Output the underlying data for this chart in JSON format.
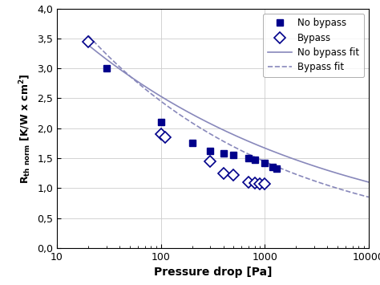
{
  "no_bypass_x": [
    30,
    100,
    200,
    300,
    400,
    500,
    700,
    800,
    1000,
    1200,
    1300
  ],
  "no_bypass_y": [
    3.0,
    2.1,
    1.75,
    1.62,
    1.58,
    1.55,
    1.5,
    1.48,
    1.42,
    1.35,
    1.33
  ],
  "bypass_x": [
    20,
    100,
    110,
    300,
    400,
    500,
    700,
    800,
    900,
    1000
  ],
  "bypass_y": [
    3.45,
    1.9,
    1.85,
    1.45,
    1.25,
    1.22,
    1.1,
    1.08,
    1.07,
    1.07
  ],
  "no_bypass_fit_anchor1_x": 30,
  "no_bypass_fit_anchor1_y": 3.15,
  "no_bypass_fit_anchor2_x": 10000,
  "no_bypass_fit_anchor2_y": 1.1,
  "bypass_fit_anchor1_x": 20,
  "bypass_fit_anchor1_y": 3.55,
  "bypass_fit_anchor2_x": 10000,
  "bypass_fit_anchor2_y": 0.85,
  "color_dark_blue": "#00008B",
  "color_fit": "#8888bb",
  "xlim": [
    10,
    10000
  ],
  "ylim": [
    0.0,
    4.0
  ],
  "xlabel": "Pressure drop [Pa]",
  "legend_labels": [
    "No bypass",
    "Bypass",
    "No bypass fit",
    "Bypass fit"
  ],
  "yticks": [
    0.0,
    0.5,
    1.0,
    1.5,
    2.0,
    2.5,
    3.0,
    3.5,
    4.0
  ],
  "ytick_labels": [
    "0,0",
    "0,5",
    "1,0",
    "1,5",
    "2,0",
    "2,5",
    "3,0",
    "3,5",
    "4,0"
  ],
  "xtick_labels": [
    "10",
    "100",
    "1000",
    "10000"
  ]
}
